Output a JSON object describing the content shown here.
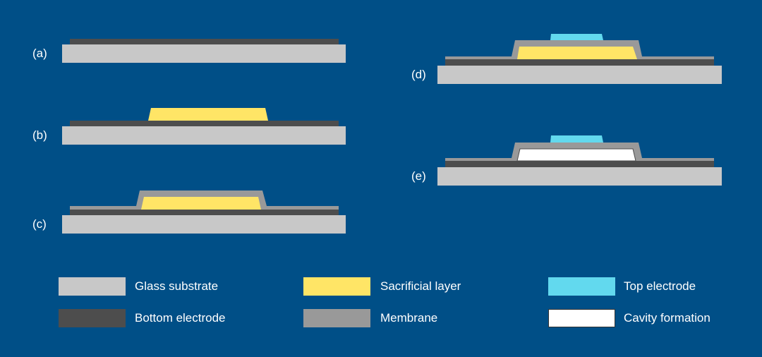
{
  "colors": {
    "background": "#004f87",
    "glass": "#c8c8c8",
    "bottom_electrode": "#4d4d4d",
    "sacrificial": "#ffe566",
    "membrane": "#999999",
    "top_electrode": "#62d9ee",
    "cavity": "#ffffff"
  },
  "steps": [
    {
      "label": "(a)"
    },
    {
      "label": "(b)"
    },
    {
      "label": "(c)"
    },
    {
      "label": "(d)"
    },
    {
      "label": "(e)"
    }
  ],
  "legend": [
    {
      "label": "Glass substrate",
      "color": "#c8c8c8"
    },
    {
      "label": "Bottom electrode",
      "color": "#4d4d4d"
    },
    {
      "label": "Sacrificial layer",
      "color": "#ffe566"
    },
    {
      "label": "Membrane",
      "color": "#999999"
    },
    {
      "label": "Top electrode",
      "color": "#62d9ee"
    },
    {
      "label": "Cavity formation",
      "color": "#ffffff"
    }
  ]
}
